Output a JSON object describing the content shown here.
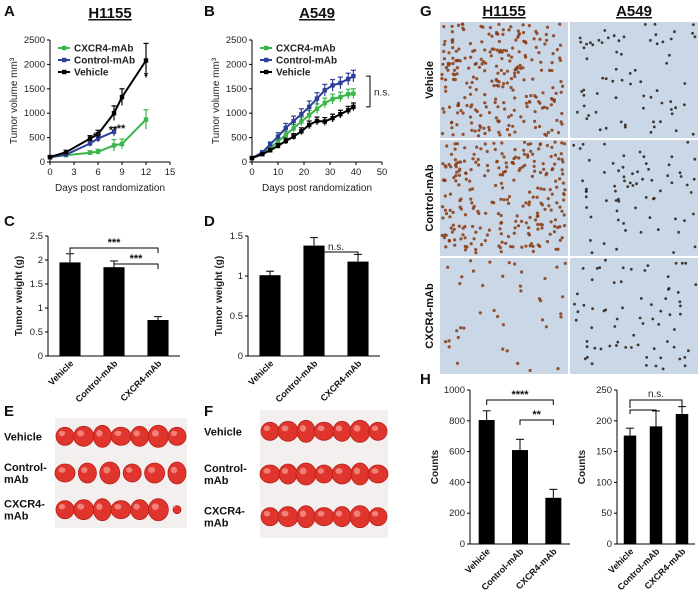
{
  "panels": {
    "A": "A",
    "B": "B",
    "C": "C",
    "D": "D",
    "E": "E",
    "F": "F",
    "G": "G",
    "H": "H"
  },
  "colors": {
    "cxcr4": "#3cb54a",
    "control": "#2e3f98",
    "vehicle": "#000000",
    "bar": "#000000",
    "ihc_bg": "#c9d7e6",
    "ihc_stain": "#8a3a12"
  },
  "tumor_photos": {
    "E": {
      "rows": [
        "Vehicle",
        "Control-mAb",
        "CXCR4-mAb"
      ],
      "row_labels": [
        [
          "Vehicle"
        ],
        [
          "Control-",
          "mAb"
        ],
        [
          "CXCR4-",
          "mAb"
        ]
      ]
    },
    "F": {
      "rows": [
        "Vehicle",
        "Control-mAb",
        "CXCR4-mAb"
      ],
      "row_labels": [
        [
          "Vehicle"
        ],
        [
          "Control-",
          "mAb"
        ],
        [
          "CXCR4-",
          "mAb"
        ]
      ]
    }
  },
  "ihc": {
    "columns": [
      "H1155",
      "A549"
    ],
    "rows": [
      "Vehicle",
      "Control-mAb",
      "CXCR4-mAb"
    ]
  },
  "chart_data": [
    {
      "panel": "A",
      "type": "line",
      "title": "H1155",
      "xlabel": "Days post randomization",
      "ylabel": "Tumor volume mm³",
      "xlim": [
        0,
        15
      ],
      "ylim": [
        0,
        2500
      ],
      "xticks": [
        0,
        3,
        6,
        9,
        12,
        15
      ],
      "yticks": [
        0,
        500,
        1000,
        1500,
        2000,
        2500
      ],
      "legend": "top-left",
      "series": [
        {
          "name": "CXCR4-mAb",
          "color": "#3cb54a",
          "x": [
            0,
            2,
            5,
            6,
            8,
            9,
            12
          ],
          "y": [
            100,
            140,
            190,
            210,
            340,
            370,
            870
          ],
          "err": [
            20,
            30,
            40,
            50,
            120,
            100,
            200
          ]
        },
        {
          "name": "Control-mAb",
          "color": "#2e3f98",
          "x": [
            0,
            2,
            5,
            6,
            8
          ],
          "y": [
            100,
            150,
            380,
            480,
            620
          ],
          "err": [
            20,
            30,
            60,
            70,
            90
          ]
        },
        {
          "name": "Vehicle",
          "color": "#000000",
          "x": [
            0,
            2,
            5,
            6,
            8,
            9,
            12
          ],
          "y": [
            100,
            200,
            480,
            570,
            1000,
            1330,
            2080
          ],
          "err": [
            20,
            40,
            60,
            80,
            150,
            170,
            350
          ]
        }
      ],
      "annotations": [
        {
          "x": 6,
          "y": 210,
          "text": "**"
        },
        {
          "x": 8,
          "y": 340,
          "text": "**"
        },
        {
          "x": 9,
          "y": 370,
          "text": "**"
        },
        {
          "x": 12,
          "y": 870,
          "text": "*"
        }
      ]
    },
    {
      "panel": "B",
      "type": "line",
      "title": "A549",
      "xlabel": "Days post randomization",
      "ylabel": "Tumor volume mm³",
      "xlim": [
        0,
        50
      ],
      "ylim": [
        0,
        2500
      ],
      "xticks": [
        0,
        10,
        20,
        30,
        40,
        50
      ],
      "yticks": [
        0,
        500,
        1000,
        1500,
        2000,
        2500
      ],
      "legend": "top-left",
      "series": [
        {
          "name": "CXCR4-mAb",
          "color": "#3cb54a",
          "x": [
            0,
            4,
            7,
            10,
            13,
            16,
            19,
            22,
            25,
            28,
            31,
            34,
            37,
            39
          ],
          "y": [
            80,
            180,
            280,
            420,
            560,
            690,
            830,
            960,
            1090,
            1210,
            1290,
            1330,
            1390,
            1400
          ],
          "err": [
            20,
            30,
            40,
            60,
            70,
            80,
            90,
            100,
            100,
            100,
            100,
            100,
            100,
            100
          ]
        },
        {
          "name": "Control-mAb",
          "color": "#2e3f98",
          "x": [
            0,
            4,
            7,
            10,
            13,
            16,
            19,
            22,
            25,
            28,
            31,
            34,
            37,
            39
          ],
          "y": [
            80,
            200,
            360,
            520,
            700,
            840,
            980,
            1130,
            1300,
            1470,
            1570,
            1620,
            1700,
            1760
          ],
          "err": [
            20,
            30,
            50,
            80,
            90,
            100,
            110,
            120,
            120,
            120,
            120,
            120,
            120,
            120
          ]
        },
        {
          "name": "Vehicle",
          "color": "#000000",
          "x": [
            0,
            4,
            7,
            10,
            13,
            16,
            19,
            22,
            25,
            28,
            31,
            34,
            37,
            39
          ],
          "y": [
            80,
            160,
            240,
            330,
            430,
            520,
            630,
            760,
            840,
            830,
            900,
            980,
            1060,
            1130
          ],
          "err": [
            20,
            30,
            40,
            50,
            60,
            60,
            70,
            80,
            80,
            80,
            80,
            80,
            80,
            80
          ]
        }
      ],
      "annotations": [
        {
          "text": "n.s."
        }
      ]
    },
    {
      "panel": "C",
      "type": "bar",
      "ylabel": "Tumor weight (g)",
      "categories": [
        "Vehicle",
        "Control-mAb",
        "CXCR4-mAb"
      ],
      "values": [
        1.95,
        1.85,
        0.75
      ],
      "err": [
        0.18,
        0.13,
        0.07
      ],
      "ylim": [
        0,
        2.5
      ],
      "yticks": [
        0,
        0.5,
        1,
        1.5,
        2,
        2.5
      ],
      "significance": [
        {
          "from": 0,
          "to": 2,
          "text": "***"
        },
        {
          "from": 1,
          "to": 2,
          "text": "***"
        }
      ]
    },
    {
      "panel": "D",
      "type": "bar",
      "ylabel": "Tumor weight (g)",
      "categories": [
        "Vehicle",
        "Control-mAb",
        "CXCR4-mAb"
      ],
      "values": [
        1.01,
        1.38,
        1.18
      ],
      "err": [
        0.05,
        0.1,
        0.09
      ],
      "ylim": [
        0,
        1.5
      ],
      "yticks": [
        0,
        0.5,
        1,
        1.5
      ],
      "significance": [
        {
          "from": 1,
          "to": 2,
          "text": "n.s."
        }
      ]
    },
    {
      "panel": "H",
      "type": "bar",
      "title": "H1155",
      "ylabel": "Counts",
      "categories": [
        "Vehicle",
        "Control-mAb",
        "CXCR4-mAb"
      ],
      "values": [
        805,
        610,
        300
      ],
      "err": [
        60,
        70,
        55
      ],
      "ylim": [
        0,
        1000
      ],
      "yticks": [
        0,
        200,
        400,
        600,
        800,
        1000
      ],
      "significance": [
        {
          "from": 0,
          "to": 2,
          "text": "****"
        },
        {
          "from": 1,
          "to": 2,
          "text": "**"
        }
      ]
    },
    {
      "panel": "H",
      "type": "bar",
      "title": "A549",
      "ylabel": "Counts",
      "categories": [
        "Vehicle",
        "Control-mAb",
        "CXCR4-mAb"
      ],
      "values": [
        176,
        191,
        211
      ],
      "err": [
        12,
        25,
        12
      ],
      "ylim": [
        0,
        250
      ],
      "yticks": [
        0,
        50,
        100,
        150,
        200,
        250
      ],
      "significance": [
        {
          "from": 0,
          "to": 1,
          "to2": 2,
          "text": "n.s."
        }
      ]
    }
  ]
}
